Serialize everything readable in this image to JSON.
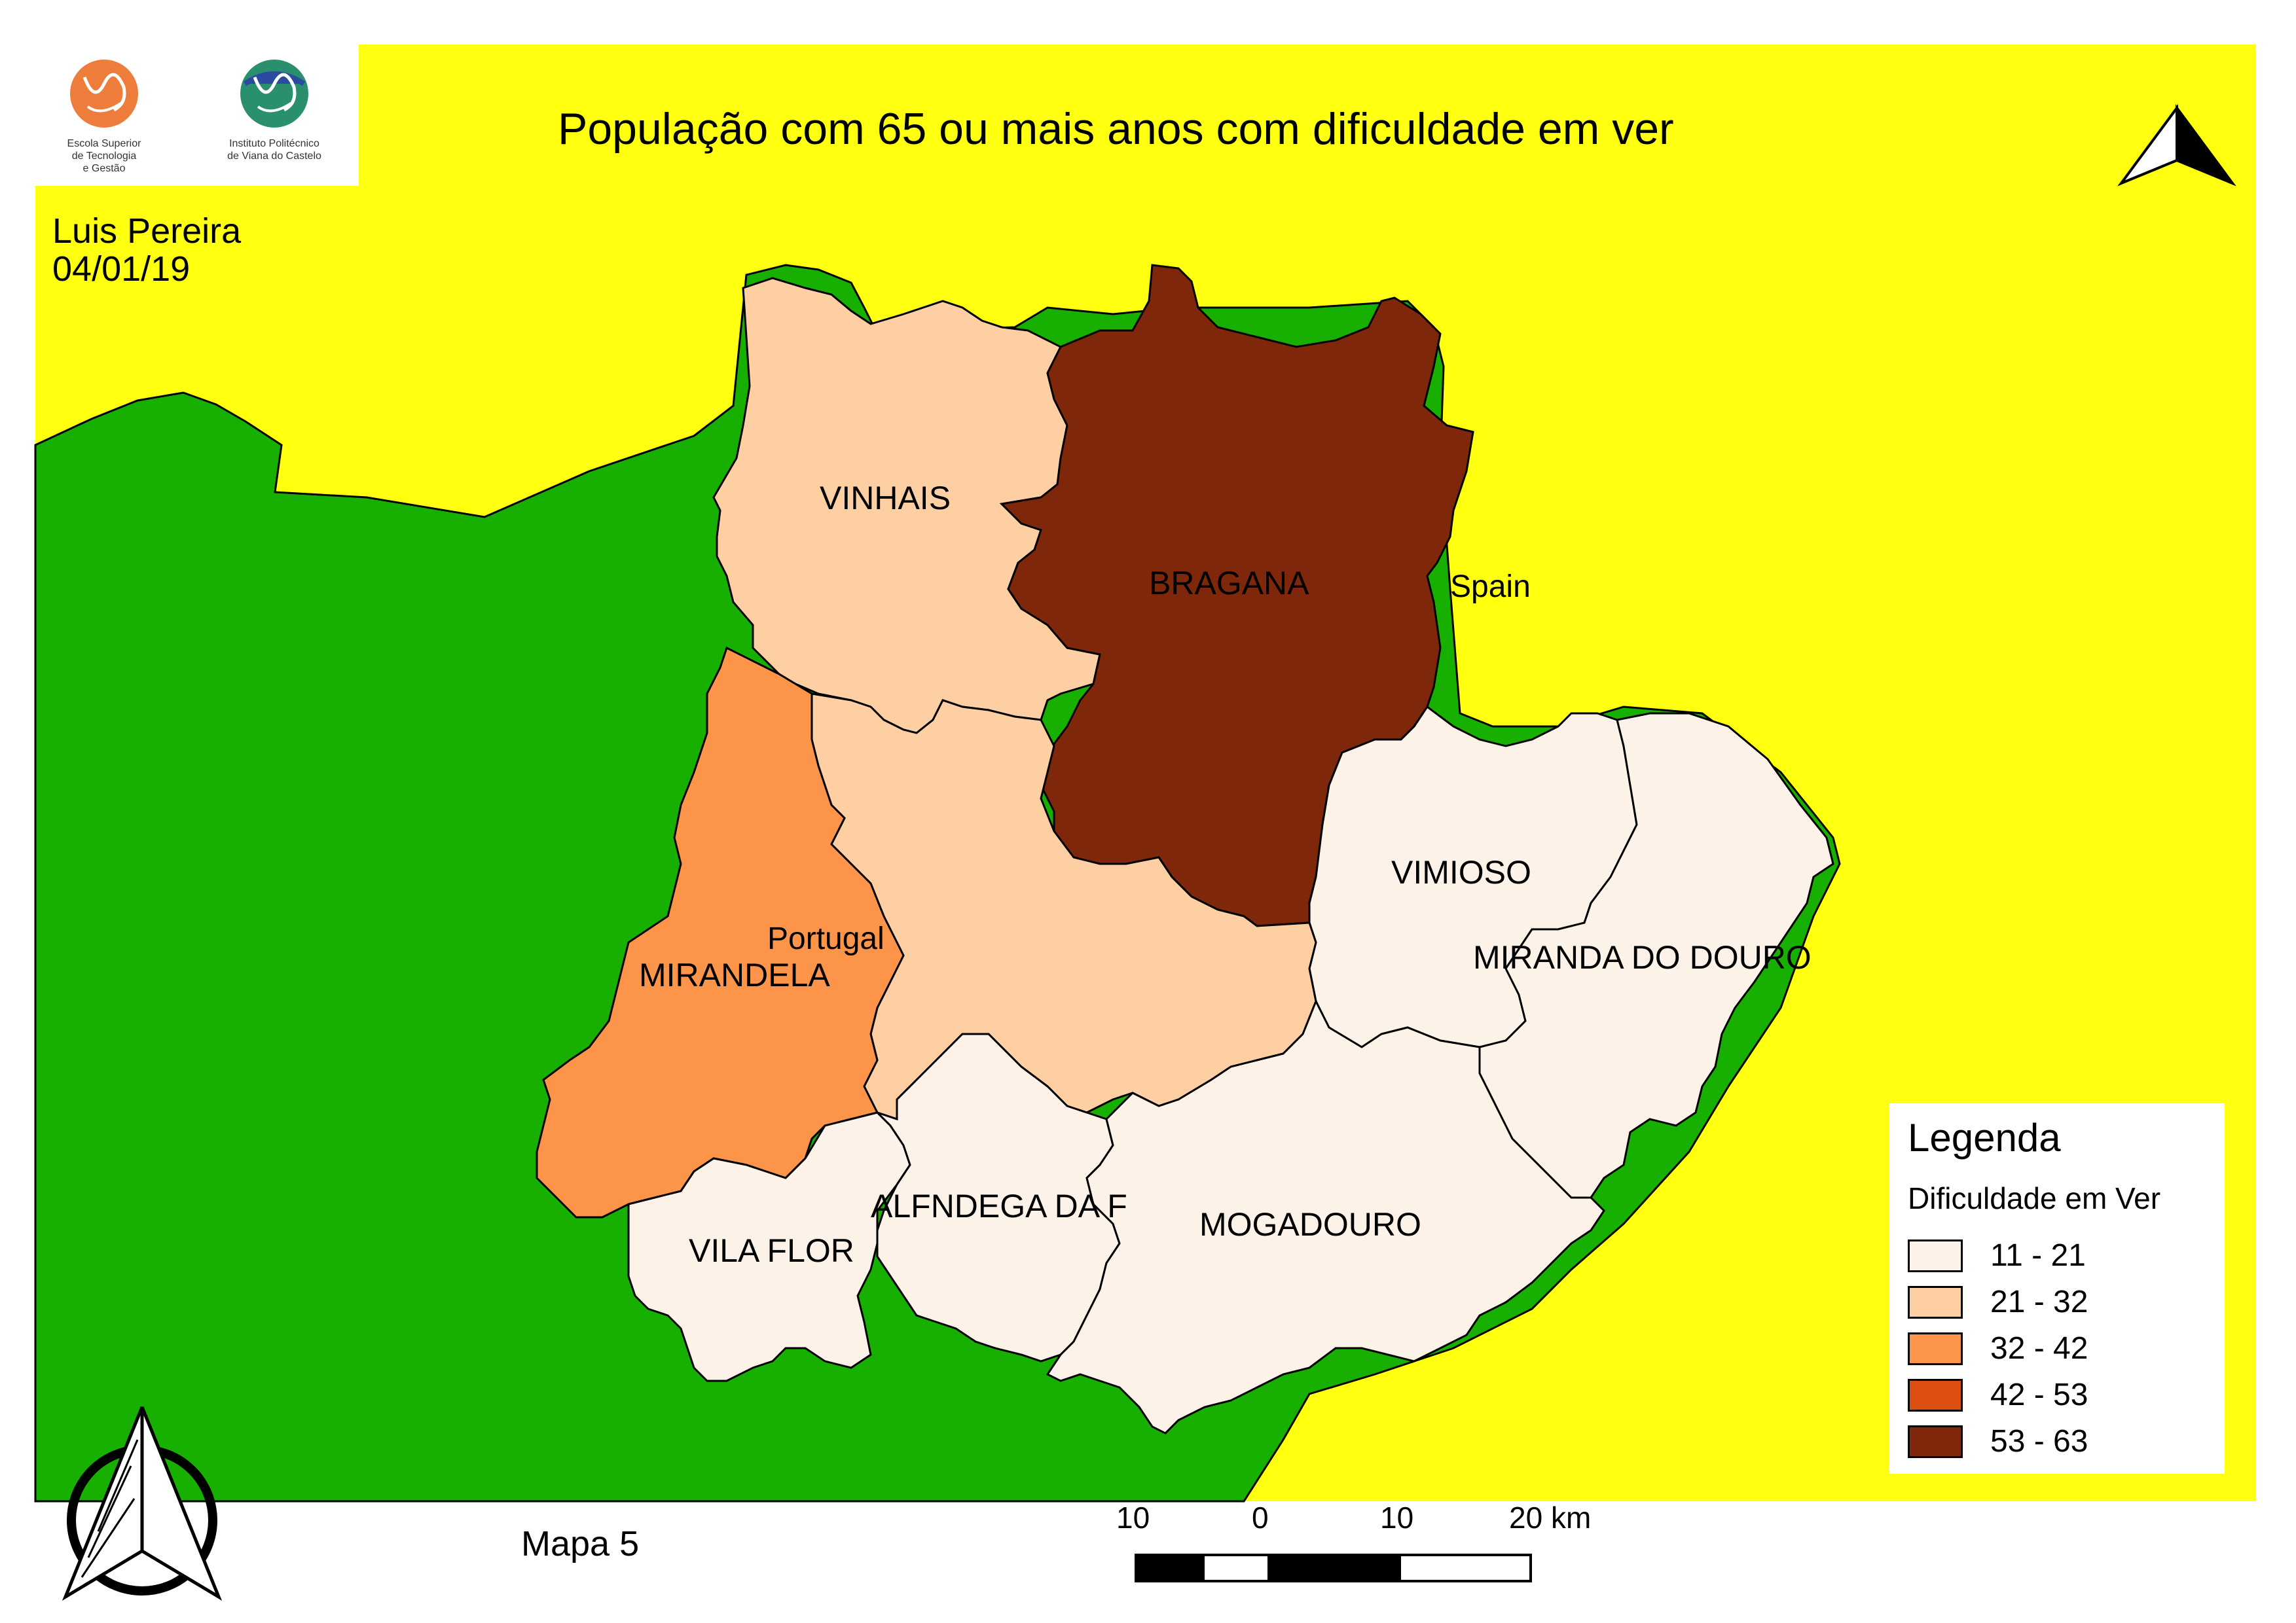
{
  "map": {
    "title": "População com 65 ou mais anos com dificuldade em ver",
    "author": "Luis Pereira",
    "date": "04/01/19",
    "map_number": "Mapa 5"
  },
  "logos": {
    "left_caption": "Escola Superior\nde Tecnologia\ne Gestão",
    "right_caption": "Instituto Politécnico\nde Viana do Castelo"
  },
  "region_labels": {
    "spain": "Spain",
    "portugal": "Portugal"
  },
  "municipalities": [
    {
      "name": "VINHAIS",
      "class": "21 - 32"
    },
    {
      "name": "BRAGANA",
      "class": "53 - 63"
    },
    {
      "name": "VIMIOSO",
      "class": "11 - 21"
    },
    {
      "name": "MIRANDA DO DOURO",
      "class": "11 - 21"
    },
    {
      "name": "MIRANDELA",
      "class": "32 - 42"
    },
    {
      "name": "",
      "class": "21 - 32"
    },
    {
      "name": "ALFNDEGA DA F",
      "class": "11 - 21"
    },
    {
      "name": "MOGADOURO",
      "class": "11 - 21"
    },
    {
      "name": "VILA FLOR",
      "class": "11 - 21"
    }
  ],
  "legend": {
    "title": "Legenda",
    "subtitle": "Dificuldade em Ver",
    "items": [
      {
        "label": "11 - 21",
        "color": "#fdf2e8"
      },
      {
        "label": "21 - 32",
        "color": "#fdcfa3"
      },
      {
        "label": "32 - 42",
        "color": "#fc9449"
      },
      {
        "label": "42 - 53",
        "color": "#dd4f10"
      },
      {
        "label": "53 - 63",
        "color": "#7f270b"
      }
    ]
  },
  "scale_bar": {
    "labels": [
      "10",
      "0",
      "10",
      "20 km"
    ]
  },
  "colors": {
    "spain_fill": "#ffff10",
    "portugal_fill": "#18b000",
    "border": "#000000"
  },
  "icons": [
    "north-arrow-icon",
    "compass-rose-icon",
    "school-logo-icon",
    "institute-logo-icon"
  ]
}
